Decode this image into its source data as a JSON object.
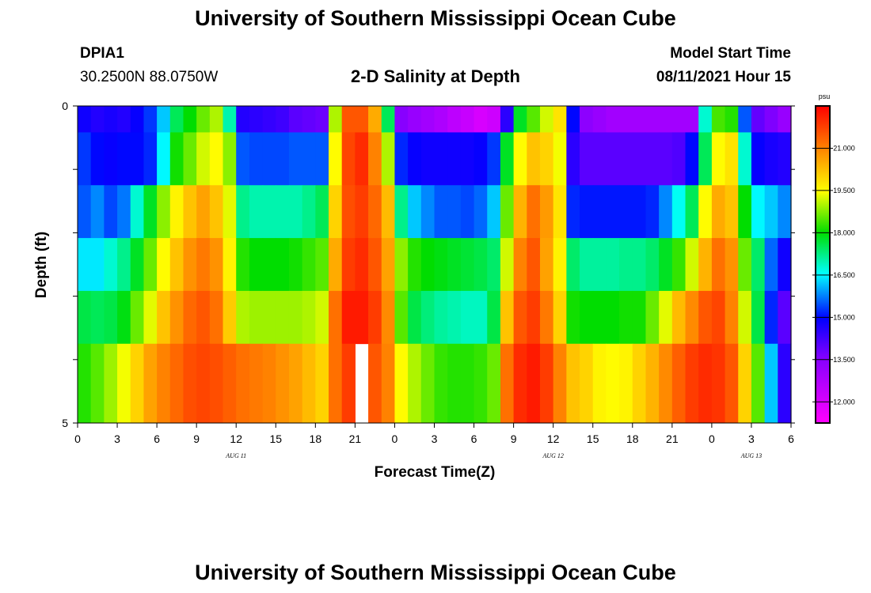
{
  "header": {
    "title": "University of Southern Mississippi Ocean Cube",
    "station": "DPIA1",
    "coords": "30.2500N  88.0750W",
    "chart_title": "2-D Salinity at Depth",
    "model_start_label": "Model Start Time",
    "model_start_value": "08/11/2021 Hour 15"
  },
  "footer": {
    "title": "University of Southern Mississippi Ocean Cube"
  },
  "chart_data": {
    "type": "heatmap",
    "title": "2-D Salinity at Depth",
    "xlabel": "Forecast Time(Z)",
    "ylabel": "Depth (ft)",
    "y_tick_labels": [
      "0",
      "5"
    ],
    "ylim": [
      0,
      5
    ],
    "xlim_hours": [
      0,
      54
    ],
    "x_tick_labels": [
      "0",
      "3",
      "6",
      "9",
      "12",
      "15",
      "18",
      "21",
      "0",
      "3",
      "6",
      "9",
      "12",
      "15",
      "18",
      "21",
      "0",
      "3",
      "6"
    ],
    "date_labels": [
      {
        "text": "AUG  11",
        "hour": 12
      },
      {
        "text": "AUG  12",
        "hour": 36
      },
      {
        "text": "AUG  13",
        "hour": 51
      }
    ],
    "colorbar": {
      "units": "psu",
      "range": [
        11.25,
        22.5
      ],
      "tick_values": [
        12.0,
        13.5,
        15.0,
        16.5,
        18.0,
        19.5,
        21.0
      ],
      "tick_labels": [
        "12.000",
        "13.500",
        "15.000",
        "16.500",
        "18.000",
        "19.500",
        "21.000"
      ]
    },
    "missing_cells": [
      {
        "hour": 21,
        "depth_row": 5
      }
    ],
    "depth_rows": [
      0,
      1,
      2,
      3,
      4,
      5
    ],
    "time_hours": [
      0,
      1,
      2,
      3,
      4,
      5,
      6,
      7,
      8,
      9,
      10,
      11,
      12,
      13,
      14,
      15,
      16,
      17,
      18,
      19,
      20,
      21,
      22,
      23,
      24,
      25,
      26,
      27,
      28,
      29,
      30,
      31,
      32,
      33,
      34,
      35,
      36,
      37,
      38,
      39,
      40,
      41,
      42,
      43,
      44,
      45,
      46,
      47,
      48,
      49,
      50,
      51,
      52,
      53
    ],
    "values": [
      [
        14.8,
        14.6,
        14.7,
        14.6,
        14.9,
        15.3,
        16.2,
        17.5,
        18.0,
        18.6,
        19.0,
        17.0,
        14.6,
        14.5,
        14.4,
        14.3,
        14.0,
        13.9,
        13.8,
        19.0,
        21.5,
        21.5,
        20.5,
        17.5,
        13.5,
        13.2,
        13.0,
        12.8,
        12.5,
        12.3,
        12.0,
        12.2,
        14.5,
        17.8,
        18.5,
        19.2,
        19.8,
        15.0,
        13.4,
        13.2,
        13.0,
        13.0,
        13.0,
        13.0,
        13.0,
        13.0,
        13.0,
        16.8,
        18.4,
        18.2,
        15.5,
        13.9,
        13.6,
        13.2
      ],
      [
        15.3,
        15.0,
        14.9,
        15.0,
        15.0,
        15.2,
        16.5,
        18.1,
        18.6,
        19.2,
        19.5,
        18.8,
        15.5,
        15.4,
        15.4,
        15.4,
        15.5,
        15.5,
        15.5,
        19.5,
        21.7,
        22.0,
        21.0,
        19.0,
        15.2,
        14.9,
        14.8,
        14.8,
        14.8,
        14.8,
        14.9,
        15.3,
        17.8,
        19.5,
        20.2,
        20.0,
        19.4,
        14.5,
        14.0,
        14.0,
        14.0,
        14.0,
        14.0,
        14.0,
        14.0,
        14.1,
        15.0,
        17.5,
        19.5,
        19.8,
        16.8,
        14.9,
        14.7,
        14.6
      ],
      [
        15.5,
        15.8,
        15.4,
        15.7,
        16.8,
        17.8,
        18.8,
        19.6,
        20.2,
        20.6,
        20.2,
        19.3,
        17.2,
        17.0,
        17.0,
        17.0,
        17.0,
        17.2,
        17.5,
        20.0,
        21.6,
        21.8,
        21.3,
        20.3,
        17.2,
        16.2,
        15.8,
        15.5,
        15.5,
        15.4,
        15.6,
        16.2,
        18.6,
        20.4,
        21.2,
        20.7,
        19.8,
        15.2,
        15.1,
        15.1,
        15.1,
        15.1,
        15.1,
        15.2,
        15.8,
        16.6,
        17.5,
        19.5,
        20.5,
        20.2,
        18.0,
        16.5,
        16.2,
        15.8
      ],
      [
        16.4,
        16.4,
        16.8,
        17.2,
        17.8,
        18.6,
        19.5,
        20.2,
        20.8,
        21.1,
        20.8,
        19.6,
        18.2,
        18.0,
        18.0,
        18.0,
        18.1,
        18.3,
        18.5,
        20.5,
        21.8,
        22.0,
        21.5,
        20.6,
        18.8,
        18.2,
        18.0,
        17.9,
        17.8,
        17.7,
        17.6,
        17.4,
        19.2,
        21.0,
        21.5,
        20.6,
        19.6,
        17.4,
        17.1,
        17.1,
        17.1,
        17.2,
        17.2,
        17.4,
        17.8,
        18.3,
        19.2,
        20.4,
        21.2,
        20.8,
        18.6,
        17.4,
        15.6,
        14.8
      ],
      [
        17.6,
        17.5,
        17.6,
        17.9,
        18.6,
        19.3,
        20.2,
        20.8,
        21.3,
        21.5,
        21.2,
        20.1,
        19.0,
        18.9,
        18.9,
        18.9,
        18.9,
        19.0,
        19.2,
        21.2,
        22.2,
        22.2,
        21.8,
        20.9,
        18.5,
        17.6,
        17.3,
        17.1,
        17.0,
        16.9,
        16.9,
        17.6,
        20.2,
        21.5,
        21.8,
        21.1,
        20.0,
        18.1,
        18.0,
        18.0,
        18.0,
        18.1,
        18.1,
        18.6,
        19.3,
        20.3,
        20.9,
        21.5,
        21.7,
        21.0,
        19.2,
        17.6,
        15.2,
        14.0
      ],
      [
        18.2,
        18.5,
        18.9,
        19.4,
        20.0,
        20.6,
        21.0,
        21.3,
        21.6,
        21.7,
        21.6,
        21.4,
        21.2,
        21.1,
        21.0,
        20.8,
        20.6,
        20.3,
        20.0,
        21.2,
        21.8,
        null,
        21.5,
        21.0,
        19.5,
        19.0,
        18.6,
        18.3,
        18.2,
        18.2,
        18.3,
        18.6,
        21.2,
        22.0,
        22.2,
        21.8,
        21.0,
        20.2,
        20.0,
        19.6,
        19.5,
        19.6,
        20.0,
        20.4,
        20.9,
        21.4,
        21.8,
        22.0,
        21.9,
        21.5,
        20.0,
        18.5,
        16.2,
        14.5
      ]
    ]
  }
}
